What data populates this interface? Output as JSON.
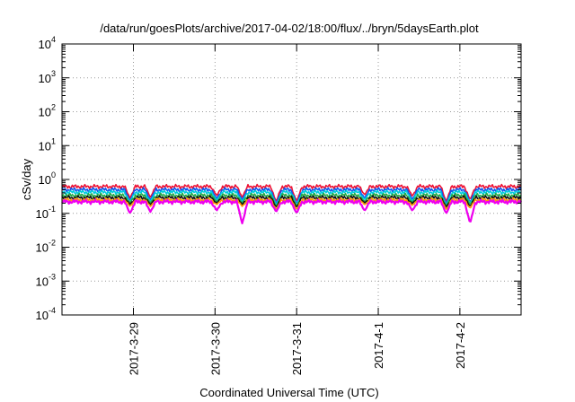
{
  "chart_data": {
    "type": "line",
    "title": "/data/run/goesPlots/archive/2017-04-02/18:00/flux/../bryn/5daysEarth.plot",
    "xlabel": "Coordinated Universal Time (UTC)",
    "ylabel": "cSv/day",
    "yscale": "log",
    "ylim": [
      0.0001,
      10000
    ],
    "y_ticks": [
      {
        "base": "10",
        "exp": "-4",
        "value": 0.0001
      },
      {
        "base": "10",
        "exp": "-3",
        "value": 0.001
      },
      {
        "base": "10",
        "exp": "-2",
        "value": 0.01
      },
      {
        "base": "10",
        "exp": "-1",
        "value": 0.1
      },
      {
        "base": "10",
        "exp": "0",
        "value": 1
      },
      {
        "base": "10",
        "exp": "1",
        "value": 10
      },
      {
        "base": "10",
        "exp": "2",
        "value": 100
      },
      {
        "base": "10",
        "exp": "3",
        "value": 1000
      },
      {
        "base": "10",
        "exp": "4",
        "value": 10000
      }
    ],
    "xlim": [
      "2017-03-28 03:00",
      "2017-04-02 18:00"
    ],
    "x_ticks": [
      "2017-3-29",
      "2017-3-30",
      "2017-3-31",
      "2017-4-1",
      "2017-4-2"
    ],
    "grid": true,
    "legend": "none",
    "series": [
      {
        "color": "#ee1133",
        "level": 0.62,
        "dips": [
          {
            "x": "2017-03-28 23:00",
            "y": 0.28
          },
          {
            "x": "2017-03-29 05:00",
            "y": 0.3
          },
          {
            "x": "2017-03-30 00:30",
            "y": 0.33
          },
          {
            "x": "2017-03-30 08:00",
            "y": 0.3
          },
          {
            "x": "2017-03-30 18:00",
            "y": 0.22
          },
          {
            "x": "2017-03-31 00:00",
            "y": 0.22
          },
          {
            "x": "2017-03-31 20:00",
            "y": 0.35
          },
          {
            "x": "2017-04-01 10:00",
            "y": 0.32
          },
          {
            "x": "2017-04-01 20:00",
            "y": 0.22
          },
          {
            "x": "2017-04-02 03:00",
            "y": 0.25
          }
        ]
      },
      {
        "color": "#1155ee",
        "level": 0.5,
        "dips": [
          {
            "x": "2017-03-28 23:00",
            "y": 0.24
          },
          {
            "x": "2017-03-29 05:00",
            "y": 0.25
          },
          {
            "x": "2017-03-30 00:30",
            "y": 0.27
          },
          {
            "x": "2017-03-30 08:00",
            "y": 0.25
          },
          {
            "x": "2017-03-30 18:00",
            "y": 0.19
          },
          {
            "x": "2017-03-31 00:00",
            "y": 0.19
          },
          {
            "x": "2017-03-31 20:00",
            "y": 0.28
          },
          {
            "x": "2017-04-01 10:00",
            "y": 0.26
          },
          {
            "x": "2017-04-01 20:00",
            "y": 0.19
          },
          {
            "x": "2017-04-02 03:00",
            "y": 0.21
          }
        ]
      },
      {
        "color": "#00ccdd",
        "level": 0.42,
        "dips": [
          {
            "x": "2017-03-28 23:00",
            "y": 0.22
          },
          {
            "x": "2017-03-29 05:00",
            "y": 0.22
          },
          {
            "x": "2017-03-30 00:30",
            "y": 0.24
          },
          {
            "x": "2017-03-30 08:00",
            "y": 0.22
          },
          {
            "x": "2017-03-30 18:00",
            "y": 0.17
          },
          {
            "x": "2017-03-31 00:00",
            "y": 0.17
          },
          {
            "x": "2017-03-31 20:00",
            "y": 0.25
          },
          {
            "x": "2017-04-01 10:00",
            "y": 0.23
          },
          {
            "x": "2017-04-01 20:00",
            "y": 0.17
          },
          {
            "x": "2017-04-02 03:00",
            "y": 0.19
          }
        ]
      },
      {
        "color": "#22aa44",
        "level": 0.34,
        "dips": [
          {
            "x": "2017-03-28 23:00",
            "y": 0.2
          },
          {
            "x": "2017-03-29 05:00",
            "y": 0.2
          },
          {
            "x": "2017-03-30 00:30",
            "y": 0.22
          },
          {
            "x": "2017-03-30 08:00",
            "y": 0.2
          },
          {
            "x": "2017-03-30 18:00",
            "y": 0.16
          },
          {
            "x": "2017-03-31 00:00",
            "y": 0.16
          },
          {
            "x": "2017-03-31 20:00",
            "y": 0.22
          },
          {
            "x": "2017-04-01 10:00",
            "y": 0.21
          },
          {
            "x": "2017-04-01 20:00",
            "y": 0.16
          },
          {
            "x": "2017-04-02 03:00",
            "y": 0.18
          }
        ]
      },
      {
        "color": "#111111",
        "level": 0.29,
        "dips": [
          {
            "x": "2017-03-28 23:00",
            "y": 0.18
          },
          {
            "x": "2017-03-29 05:00",
            "y": 0.18
          },
          {
            "x": "2017-03-30 00:30",
            "y": 0.2
          },
          {
            "x": "2017-03-30 08:00",
            "y": 0.18
          },
          {
            "x": "2017-03-30 18:00",
            "y": 0.15
          },
          {
            "x": "2017-03-31 00:00",
            "y": 0.15
          },
          {
            "x": "2017-03-31 20:00",
            "y": 0.2
          },
          {
            "x": "2017-04-01 10:00",
            "y": 0.19
          },
          {
            "x": "2017-04-01 20:00",
            "y": 0.15
          },
          {
            "x": "2017-04-02 03:00",
            "y": 0.16
          }
        ]
      },
      {
        "color": "#ff9900",
        "level": 0.25,
        "dips": [
          {
            "x": "2017-03-28 23:00",
            "y": 0.16
          },
          {
            "x": "2017-03-29 05:00",
            "y": 0.16
          },
          {
            "x": "2017-03-30 00:30",
            "y": 0.18
          },
          {
            "x": "2017-03-30 08:00",
            "y": 0.16
          },
          {
            "x": "2017-03-30 18:00",
            "y": 0.13
          },
          {
            "x": "2017-03-31 00:00",
            "y": 0.13
          },
          {
            "x": "2017-03-31 20:00",
            "y": 0.18
          },
          {
            "x": "2017-04-01 10:00",
            "y": 0.17
          },
          {
            "x": "2017-04-01 20:00",
            "y": 0.13
          },
          {
            "x": "2017-04-02 03:00",
            "y": 0.14
          }
        ]
      },
      {
        "color": "#ee00ee",
        "level": 0.22,
        "dips": [
          {
            "x": "2017-03-28 23:00",
            "y": 0.1
          },
          {
            "x": "2017-03-29 05:00",
            "y": 0.11
          },
          {
            "x": "2017-03-30 00:30",
            "y": 0.12
          },
          {
            "x": "2017-03-30 08:00",
            "y": 0.05
          },
          {
            "x": "2017-03-30 18:00",
            "y": 0.11
          },
          {
            "x": "2017-03-31 00:00",
            "y": 0.1
          },
          {
            "x": "2017-03-31 20:00",
            "y": 0.12
          },
          {
            "x": "2017-04-01 10:00",
            "y": 0.12
          },
          {
            "x": "2017-04-01 20:00",
            "y": 0.1
          },
          {
            "x": "2017-04-02 03:00",
            "y": 0.05
          }
        ]
      }
    ]
  }
}
